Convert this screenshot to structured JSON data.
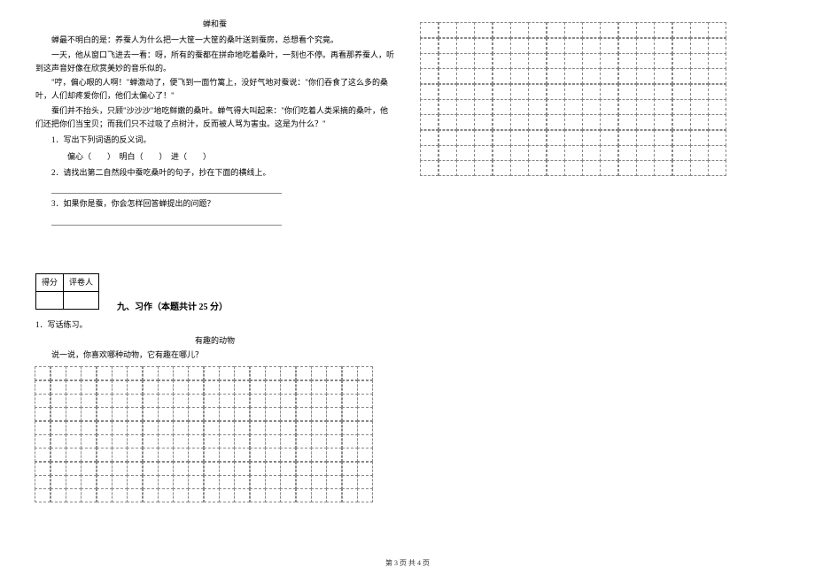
{
  "passage": {
    "title": "蝉和蚕",
    "p1": "蝉最不明白的是：养蚕人为什么把一大筐一大筐的桑叶送到蚕房，总想看个究竟。",
    "p2": "一天，他从窗口飞进去一看：呀，所有的蚕都在拼命地吃着桑叶，一刻也不停。再看那养蚕人，听到这声音好像在欣赏美妙的音乐似的。",
    "p3": "\"哼，偏心眼的人啊！\"蝉激动了，便飞到一面竹篱上，没好气地对蚕说：\"你们吞食了这么多的桑叶，人们却疼爱你们，他们太偏心了！\"",
    "p4": "蚕们并不抬头，只顾\"沙沙沙\"地吃鲜嫩的桑叶。蝉气得大叫起来：\"你们吃着人类采摘的桑叶，他们还把你们当宝贝；而我们只不过吸了点树汁，反而被人骂为害虫。这是为什么？\"",
    "q1": "1．写出下列词语的反义词。",
    "q1_items": "偏心（　　）　明白（　　）　进（　　）",
    "q2": "2．请找出第二自然段中蚕吃桑叶的句子，抄在下面的横线上。",
    "q3": "3．如果你是蚕，你会怎样回答蝉提出的问题？"
  },
  "score": {
    "h1": "得分",
    "h2": "评卷人"
  },
  "section": {
    "title": "九、习作（本题共计 25 分）"
  },
  "essay": {
    "item": "1．写话练习。",
    "title": "有趣的动物",
    "prompt": "说一说，你喜欢哪种动物，它有趣在哪儿？"
  },
  "grid_left": {
    "rows": 10,
    "cols": 22
  },
  "grid_right": {
    "rows": 10,
    "cols": 17
  },
  "footer": "第 3 页 共 4 页"
}
